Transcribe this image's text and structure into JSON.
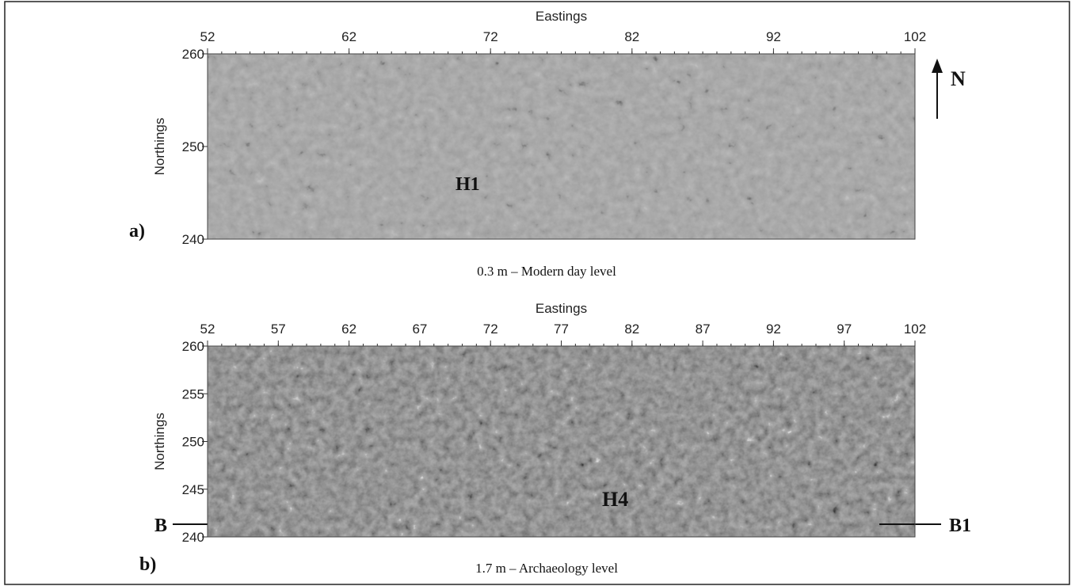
{
  "panels": [
    {
      "x_label": "Eastings",
      "y_label": "Northings",
      "letter": "a)",
      "xticks": [
        "52",
        "62",
        "72",
        "82",
        "92",
        "102"
      ],
      "yticks": [
        "260",
        "250",
        "240"
      ],
      "feature_label": "H1",
      "north_label": "N",
      "caption": "0.3 m – Modern day level"
    },
    {
      "x_label": "Eastings",
      "y_label": "Northings",
      "letter": "b)",
      "xticks": [
        "52",
        "57",
        "62",
        "67",
        "72",
        "77",
        "82",
        "87",
        "92",
        "97",
        "102"
      ],
      "yticks": [
        "260",
        "255",
        "250",
        "245",
        "240"
      ],
      "feature_label": "H4",
      "section_start": "B",
      "section_end": "B1",
      "caption": "1.7 m – Archaeology level"
    }
  ]
}
